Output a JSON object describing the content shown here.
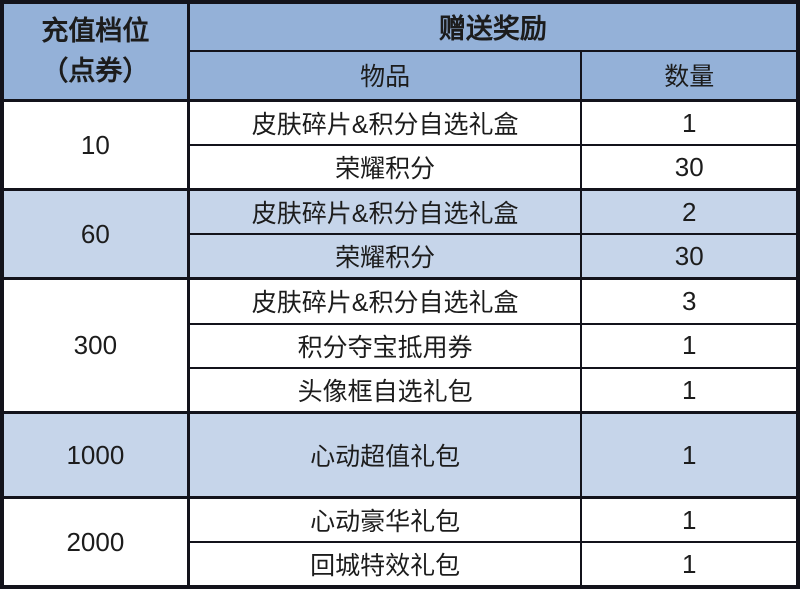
{
  "table": {
    "header": {
      "tier_line1": "充值档位",
      "tier_line2": "（点券）",
      "rewards": "赠送奖励",
      "item": "物品",
      "quantity": "数量"
    },
    "tiers": [
      {
        "tier": "10",
        "highlight": false,
        "items": [
          {
            "name": "皮肤碎片&积分自选礼盒",
            "qty": "1"
          },
          {
            "name": "荣耀积分",
            "qty": "30"
          }
        ]
      },
      {
        "tier": "60",
        "highlight": true,
        "items": [
          {
            "name": "皮肤碎片&积分自选礼盒",
            "qty": "2"
          },
          {
            "name": "荣耀积分",
            "qty": "30"
          }
        ]
      },
      {
        "tier": "300",
        "highlight": false,
        "items": [
          {
            "name": "皮肤碎片&积分自选礼盒",
            "qty": "3"
          },
          {
            "name": "积分夺宝抵用券",
            "qty": "1"
          },
          {
            "name": "头像框自选礼包",
            "qty": "1"
          }
        ]
      },
      {
        "tier": "1000",
        "highlight": true,
        "items": [
          {
            "name": "心动超值礼包",
            "qty": "1"
          }
        ]
      },
      {
        "tier": "2000",
        "highlight": false,
        "items": [
          {
            "name": "心动豪华礼包",
            "qty": "1"
          },
          {
            "name": "回城特效礼包",
            "qty": "1"
          }
        ]
      }
    ],
    "colors": {
      "header_bg": "#94b1d8",
      "highlight_row_bg": "#c6d5ea",
      "row_bg": "#ffffff",
      "border": "#13131b",
      "text": "#1c1c1c"
    }
  }
}
